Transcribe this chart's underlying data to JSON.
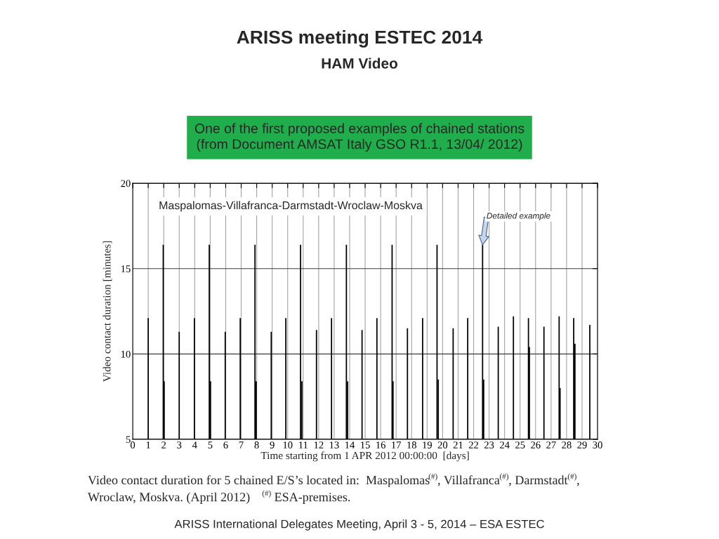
{
  "chart_data": {
    "type": "bar",
    "title": "ARISS meeting ESTEC 2014",
    "subtitle": "HAM Video",
    "xlabel": "Time starting from 1 APR 2012 00:00:00  [days]",
    "ylabel": "Video contact duration [minutes]",
    "x": [
      1.0,
      1.97,
      2.03,
      3.0,
      3.98,
      4.94,
      5.02,
      5.97,
      6.94,
      7.89,
      7.97,
      8.94,
      9.88,
      10.83,
      10.92,
      11.86,
      12.83,
      13.79,
      13.87,
      14.8,
      15.76,
      16.74,
      16.8,
      17.73,
      18.71,
      19.64,
      19.72,
      20.68,
      21.62,
      22.58,
      22.65,
      23.59,
      24.57,
      25.54,
      25.6,
      26.54,
      27.52,
      27.58,
      28.46,
      28.54,
      29.5
    ],
    "values": [
      12.1,
      16.4,
      8.4,
      11.3,
      12.1,
      16.4,
      8.4,
      11.3,
      12.1,
      16.4,
      8.4,
      11.3,
      12.1,
      16.4,
      8.4,
      11.4,
      12.1,
      16.4,
      8.4,
      11.4,
      12.1,
      16.4,
      8.4,
      11.5,
      12.1,
      16.4,
      8.5,
      11.5,
      12.1,
      16.4,
      8.5,
      11.6,
      12.2,
      12.1,
      10.4,
      11.6,
      12.2,
      8.0,
      12.1,
      10.6,
      11.7
    ],
    "color": "#000000",
    "xlim": [
      0,
      30
    ],
    "xticks": [
      0,
      1,
      2,
      3,
      4,
      5,
      6,
      7,
      8,
      9,
      10,
      11,
      12,
      13,
      14,
      15,
      16,
      17,
      18,
      19,
      20,
      21,
      22,
      23,
      24,
      25,
      26,
      27,
      28,
      29,
      30
    ],
    "ylim": [
      5,
      20
    ],
    "yticks": [
      5,
      10,
      15,
      20
    ],
    "grid": true,
    "annotations": [
      "Maspalomas-Villafranca-Darmstadt-Wroclaw-Moskva",
      {
        "text": "Detailed example",
        "x": 22.58,
        "y": 16.4
      },
      "One of the first proposed examples of chained stations\n(from Document AMSAT Italy GSO R1.1, 13/04/ 2012)",
      "Video contact duration for 5 chained E/S’s located in:  Maspalomas$^{(#)}$, Villafranca$^{(#)}$, Darmstadt$^{(#)}$,\nWroclaw, Moskva. (April 2012)    $^{(#)}$ ESA-premises.",
      "ARISS International Delegates Meeting, April 3 - 5, 2014 – ESA ESTEC"
    ]
  }
}
